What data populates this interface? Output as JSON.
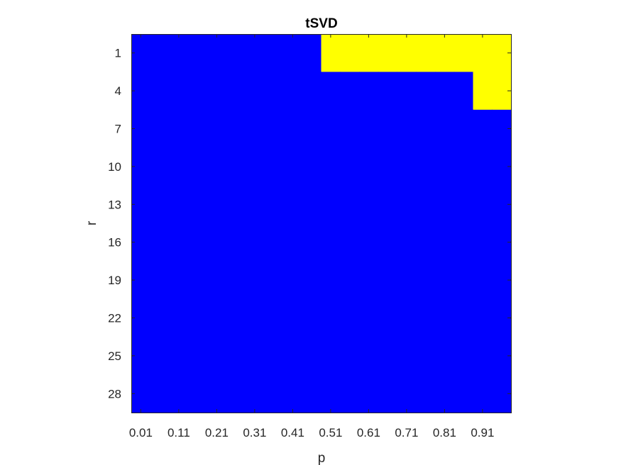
{
  "chart_data": {
    "type": "heatmap",
    "title": "tSVD",
    "xlabel": "p",
    "ylabel": "r",
    "x_tick_labels": [
      "0.01",
      "0.11",
      "0.21",
      "0.31",
      "0.41",
      "0.51",
      "0.61",
      "0.71",
      "0.81",
      "0.91"
    ],
    "y_tick_labels": [
      "1",
      "4",
      "7",
      "10",
      "13",
      "16",
      "19",
      "22",
      "25",
      "28"
    ],
    "x_values": [
      0.01,
      0.06,
      0.11,
      0.16,
      0.21,
      0.26,
      0.31,
      0.36,
      0.41,
      0.46,
      0.51,
      0.56,
      0.61,
      0.66,
      0.71,
      0.76,
      0.81,
      0.86,
      0.91,
      0.96
    ],
    "y_values": [
      1,
      4,
      7,
      10,
      13,
      16,
      19,
      22,
      25,
      28
    ],
    "colormap": {
      "0": "#0000ff",
      "1": "#ffff00"
    },
    "z": [
      [
        0,
        0,
        0,
        0,
        0,
        0,
        0,
        0,
        0,
        0,
        1,
        1,
        1,
        1,
        1,
        1,
        1,
        1,
        1,
        1
      ],
      [
        0,
        0,
        0,
        0,
        0,
        0,
        0,
        0,
        0,
        0,
        0,
        0,
        0,
        0,
        0,
        0,
        0,
        0,
        1,
        1
      ],
      [
        0,
        0,
        0,
        0,
        0,
        0,
        0,
        0,
        0,
        0,
        0,
        0,
        0,
        0,
        0,
        0,
        0,
        0,
        0,
        0
      ],
      [
        0,
        0,
        0,
        0,
        0,
        0,
        0,
        0,
        0,
        0,
        0,
        0,
        0,
        0,
        0,
        0,
        0,
        0,
        0,
        0
      ],
      [
        0,
        0,
        0,
        0,
        0,
        0,
        0,
        0,
        0,
        0,
        0,
        0,
        0,
        0,
        0,
        0,
        0,
        0,
        0,
        0
      ],
      [
        0,
        0,
        0,
        0,
        0,
        0,
        0,
        0,
        0,
        0,
        0,
        0,
        0,
        0,
        0,
        0,
        0,
        0,
        0,
        0
      ],
      [
        0,
        0,
        0,
        0,
        0,
        0,
        0,
        0,
        0,
        0,
        0,
        0,
        0,
        0,
        0,
        0,
        0,
        0,
        0,
        0
      ],
      [
        0,
        0,
        0,
        0,
        0,
        0,
        0,
        0,
        0,
        0,
        0,
        0,
        0,
        0,
        0,
        0,
        0,
        0,
        0,
        0
      ],
      [
        0,
        0,
        0,
        0,
        0,
        0,
        0,
        0,
        0,
        0,
        0,
        0,
        0,
        0,
        0,
        0,
        0,
        0,
        0,
        0
      ],
      [
        0,
        0,
        0,
        0,
        0,
        0,
        0,
        0,
        0,
        0,
        0,
        0,
        0,
        0,
        0,
        0,
        0,
        0,
        0,
        0
      ]
    ],
    "grid": false,
    "legend": "none"
  }
}
